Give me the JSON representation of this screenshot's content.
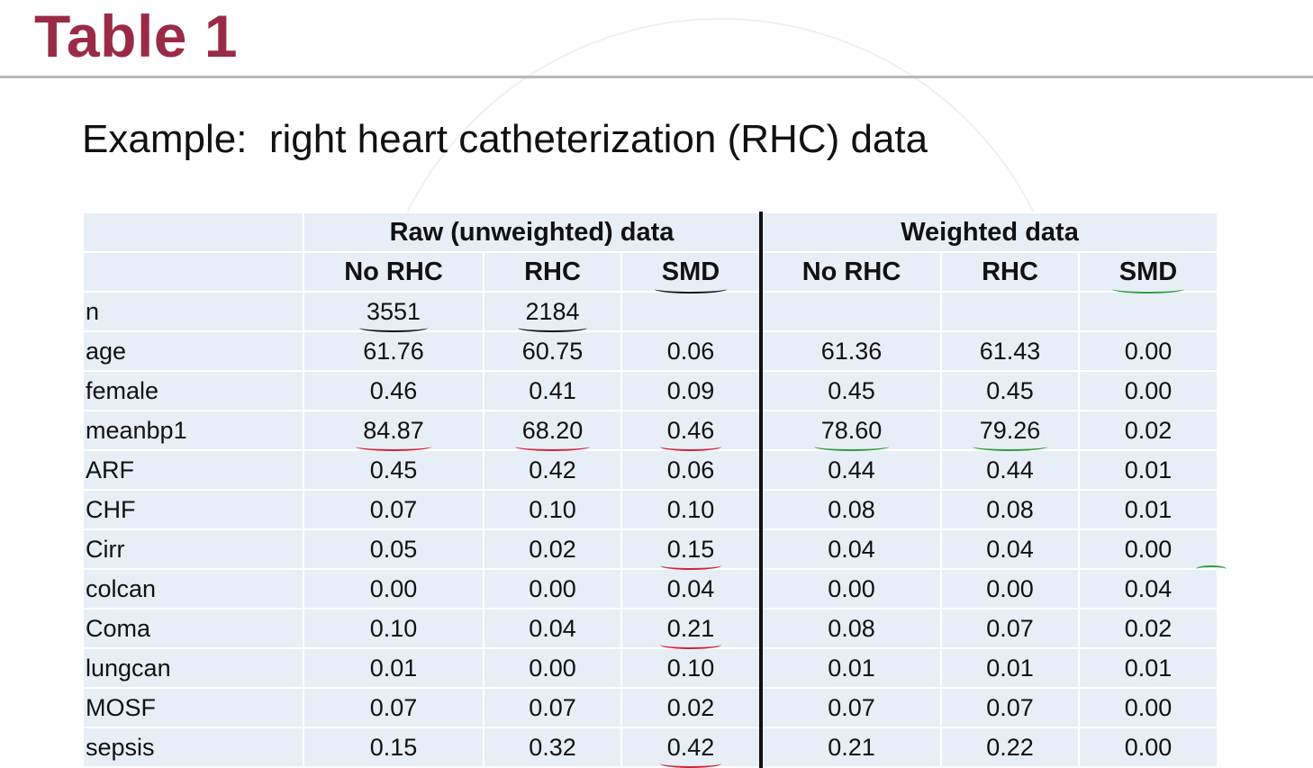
{
  "slide": {
    "title": "Table 1",
    "subtitle": "Example:  right heart catheterization (RHC) data"
  },
  "table": {
    "groups": [
      "Raw (unweighted) data",
      "Weighted data"
    ],
    "columns": [
      "No RHC",
      "RHC",
      "SMD",
      "No RHC",
      "RHC",
      "SMD"
    ],
    "rows": [
      {
        "label": "n",
        "values": [
          "3551",
          "2184",
          "",
          "",
          "",
          ""
        ]
      },
      {
        "label": "age",
        "values": [
          "61.76",
          "60.75",
          "0.06",
          "61.36",
          "61.43",
          "0.00"
        ]
      },
      {
        "label": "female",
        "values": [
          "0.46",
          "0.41",
          "0.09",
          "0.45",
          "0.45",
          "0.00"
        ]
      },
      {
        "label": "meanbp1",
        "values": [
          "84.87",
          "68.20",
          "0.46",
          "78.60",
          "79.26",
          "0.02"
        ]
      },
      {
        "label": "ARF",
        "values": [
          "0.45",
          "0.42",
          "0.06",
          "0.44",
          "0.44",
          "0.01"
        ]
      },
      {
        "label": "CHF",
        "values": [
          "0.07",
          "0.10",
          "0.10",
          "0.08",
          "0.08",
          "0.01"
        ]
      },
      {
        "label": "Cirr",
        "values": [
          "0.05",
          "0.02",
          "0.15",
          "0.04",
          "0.04",
          "0.00"
        ]
      },
      {
        "label": "colcan",
        "values": [
          "0.00",
          "0.00",
          "0.04",
          "0.00",
          "0.00",
          "0.04"
        ]
      },
      {
        "label": "Coma",
        "values": [
          "0.10",
          "0.04",
          "0.21",
          "0.08",
          "0.07",
          "0.02"
        ]
      },
      {
        "label": "lungcan",
        "values": [
          "0.01",
          "0.00",
          "0.10",
          "0.01",
          "0.01",
          "0.01"
        ]
      },
      {
        "label": "MOSF",
        "values": [
          "0.07",
          "0.07",
          "0.02",
          "0.07",
          "0.07",
          "0.00"
        ]
      },
      {
        "label": "sepsis",
        "values": [
          "0.15",
          "0.32",
          "0.42",
          "0.21",
          "0.22",
          "0.00"
        ]
      }
    ]
  },
  "annotation_colors": {
    "red": "#d0243a",
    "green": "#2e9b3c",
    "black": "#111111"
  }
}
